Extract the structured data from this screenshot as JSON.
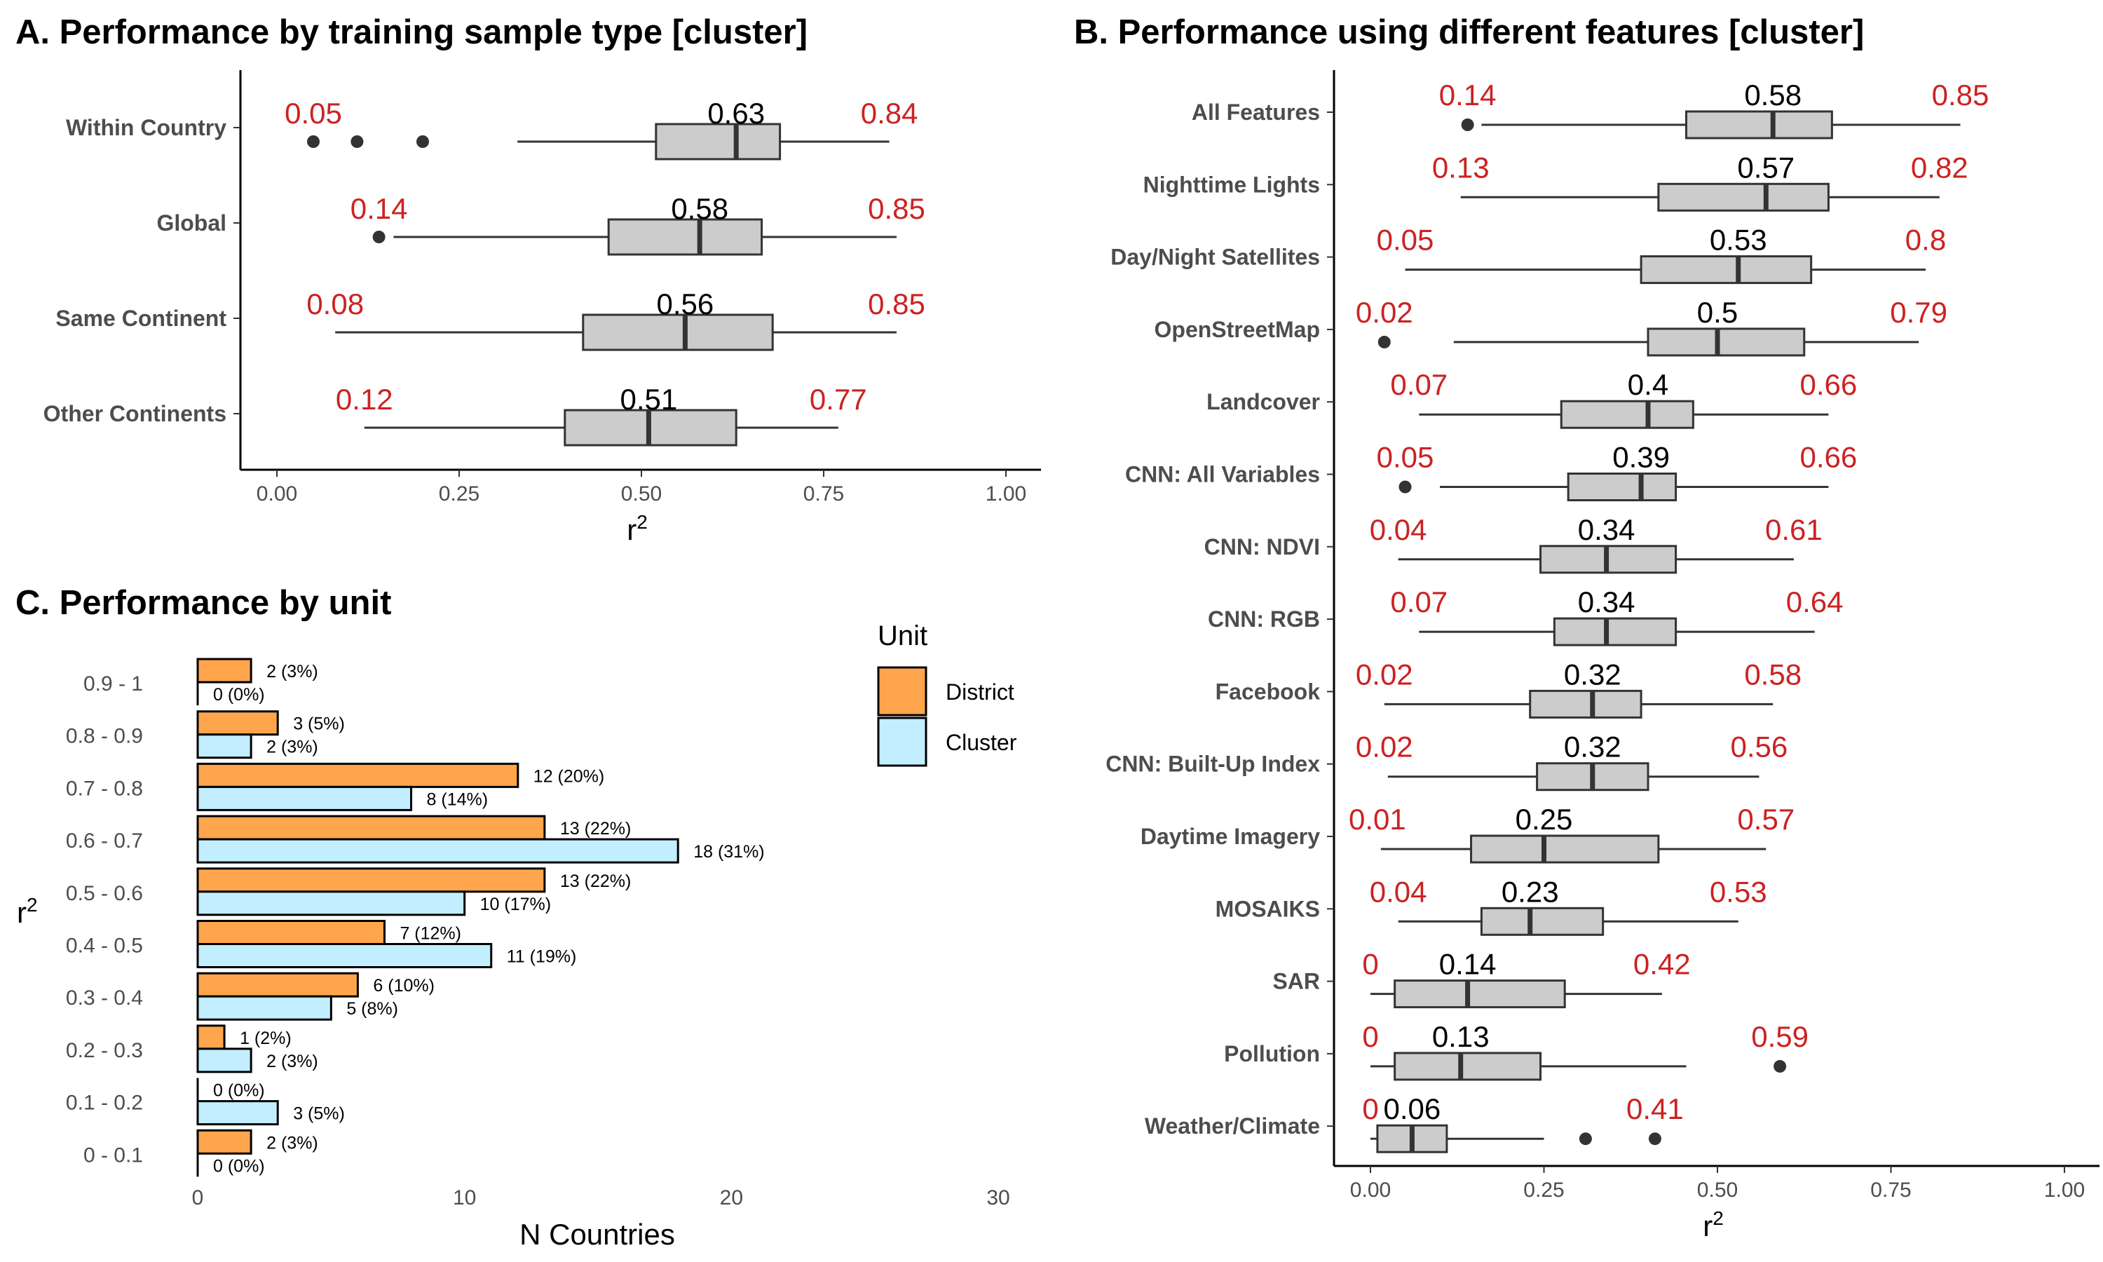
{
  "chart_data": [
    {
      "type": "box",
      "title": "A. Performance by training sample type [cluster]",
      "xlabel": "r",
      "xlabel_sup": "2",
      "xlim": [
        0,
        1
      ],
      "xticks": [
        "0.00",
        "0.25",
        "0.50",
        "0.75",
        "1.00"
      ],
      "xtick_values": [
        0,
        0.25,
        0.5,
        0.75,
        1
      ],
      "categories": [
        {
          "label": "Within Country",
          "min": 0.05,
          "max": 0.84,
          "median": 0.63,
          "min_label": "0.05",
          "max_label": "0.84",
          "median_label": "0.63",
          "whisker_low": 0.33,
          "q1": 0.52,
          "q3": 0.69,
          "outliers": [
            0.05,
            0.11,
            0.2
          ]
        },
        {
          "label": "Global",
          "min": 0.14,
          "max": 0.85,
          "median": 0.58,
          "min_label": "0.14",
          "max_label": "0.85",
          "median_label": "0.58",
          "whisker_low": 0.16,
          "q1": 0.455,
          "q3": 0.665,
          "outliers": [
            0.14
          ]
        },
        {
          "label": "Same Continent",
          "min": 0.08,
          "max": 0.85,
          "median": 0.56,
          "min_label": "0.08",
          "max_label": "0.85",
          "median_label": "0.56",
          "whisker_low": 0.08,
          "q1": 0.42,
          "q3": 0.68,
          "outliers": []
        },
        {
          "label": "Other Continents",
          "min": 0.12,
          "max": 0.77,
          "median": 0.51,
          "min_label": "0.12",
          "max_label": "0.77",
          "median_label": "0.51",
          "whisker_low": 0.12,
          "q1": 0.395,
          "q3": 0.63,
          "outliers": []
        }
      ]
    },
    {
      "type": "box",
      "title": "B. Performance using different features [cluster]",
      "xlabel": "r",
      "xlabel_sup": "2",
      "xlim": [
        0,
        1
      ],
      "xticks": [
        "0.00",
        "0.25",
        "0.50",
        "0.75",
        "1.00"
      ],
      "xtick_values": [
        0,
        0.25,
        0.5,
        0.75,
        1
      ],
      "categories": [
        {
          "label": "All Features",
          "min": 0.14,
          "max": 0.85,
          "median": 0.58,
          "min_label": "0.14",
          "max_label": "0.85",
          "median_label": "0.58",
          "whisker_low": 0.16,
          "q1": 0.455,
          "q3": 0.665,
          "outliers": [
            0.14
          ]
        },
        {
          "label": "Nighttime Lights",
          "min": 0.13,
          "max": 0.82,
          "median": 0.57,
          "min_label": "0.13",
          "max_label": "0.82",
          "median_label": "0.57",
          "whisker_low": 0.13,
          "q1": 0.415,
          "q3": 0.66,
          "outliers": []
        },
        {
          "label": "Day/Night Satellites",
          "min": 0.05,
          "max": 0.8,
          "median": 0.53,
          "min_label": "0.05",
          "max_label": "0.8",
          "median_label": "0.53",
          "whisker_low": 0.05,
          "q1": 0.39,
          "q3": 0.635,
          "outliers": []
        },
        {
          "label": "OpenStreetMap",
          "min": 0.02,
          "max": 0.79,
          "median": 0.5,
          "min_label": "0.02",
          "max_label": "0.79",
          "median_label": "0.5",
          "whisker_low": 0.12,
          "q1": 0.4,
          "q3": 0.625,
          "outliers": [
            0.02
          ]
        },
        {
          "label": "Landcover",
          "min": 0.07,
          "max": 0.66,
          "median": 0.4,
          "min_label": "0.07",
          "max_label": "0.66",
          "median_label": "0.4",
          "whisker_low": 0.07,
          "q1": 0.275,
          "q3": 0.465,
          "outliers": []
        },
        {
          "label": "CNN: All Variables",
          "min": 0.05,
          "max": 0.66,
          "median": 0.39,
          "min_label": "0.05",
          "max_label": "0.66",
          "median_label": "0.39",
          "whisker_low": 0.1,
          "q1": 0.285,
          "q3": 0.44,
          "outliers": [
            0.05
          ]
        },
        {
          "label": "CNN: NDVI",
          "min": 0.04,
          "max": 0.61,
          "median": 0.34,
          "min_label": "0.04",
          "max_label": "0.61",
          "median_label": "0.34",
          "whisker_low": 0.04,
          "q1": 0.245,
          "q3": 0.44,
          "outliers": []
        },
        {
          "label": "CNN: RGB",
          "min": 0.07,
          "max": 0.64,
          "median": 0.34,
          "min_label": "0.07",
          "max_label": "0.64",
          "median_label": "0.34",
          "whisker_low": 0.07,
          "q1": 0.265,
          "q3": 0.44,
          "outliers": []
        },
        {
          "label": "Facebook",
          "min": 0.02,
          "max": 0.58,
          "median": 0.32,
          "min_label": "0.02",
          "max_label": "0.58",
          "median_label": "0.32",
          "whisker_low": 0.02,
          "q1": 0.23,
          "q3": 0.39,
          "outliers": []
        },
        {
          "label": "CNN: Built-Up Index",
          "min": 0.02,
          "max": 0.56,
          "median": 0.32,
          "min_label": "0.02",
          "max_label": "0.56",
          "median_label": "0.32",
          "whisker_low": 0.025,
          "q1": 0.24,
          "q3": 0.4,
          "outliers": []
        },
        {
          "label": "Daytime Imagery",
          "min": 0.01,
          "max": 0.57,
          "median": 0.25,
          "min_label": "0.01",
          "max_label": "0.57",
          "median_label": "0.25",
          "whisker_low": 0.015,
          "q1": 0.145,
          "q3": 0.415,
          "outliers": []
        },
        {
          "label": "MOSAIKS",
          "min": 0.04,
          "max": 0.53,
          "median": 0.23,
          "min_label": "0.04",
          "max_label": "0.53",
          "median_label": "0.23",
          "whisker_low": 0.04,
          "q1": 0.16,
          "q3": 0.335,
          "outliers": []
        },
        {
          "label": "SAR",
          "min": 0,
          "max": 0.42,
          "median": 0.14,
          "min_label": "0",
          "max_label": "0.42",
          "median_label": "0.14",
          "whisker_low": 0.0,
          "q1": 0.035,
          "q3": 0.28,
          "outliers": []
        },
        {
          "label": "Pollution",
          "min": 0,
          "max": 0.59,
          "median": 0.13,
          "min_label": "0",
          "max_label": "0.59",
          "median_label": "0.13",
          "whisker_low": 0.0,
          "q1": 0.035,
          "q3": 0.245,
          "whisker_high": 0.455,
          "outliers": [
            0.59
          ]
        },
        {
          "label": "Weather/Climate",
          "min": 0,
          "max": 0.41,
          "median": 0.06,
          "min_label": "0",
          "max_label": "0.41",
          "median_label": "0.06",
          "whisker_low": 0.0,
          "q1": 0.01,
          "q3": 0.11,
          "whisker_high": 0.25,
          "outliers": [
            0.31,
            0.41
          ]
        }
      ]
    },
    {
      "type": "bar",
      "orientation": "horizontal",
      "title": "C. Performance by unit",
      "xlabel": "N Countries",
      "ylabel": "r",
      "ylabel_sup": "2",
      "xlim": [
        0,
        30
      ],
      "xticks": [
        "0",
        "10",
        "20",
        "30"
      ],
      "xtick_values": [
        0,
        10,
        20,
        30
      ],
      "legend_title": "Unit",
      "legend_placement": "right",
      "categories": [
        "0.9 - 1",
        "0.8 - 0.9",
        "0.7 - 0.8",
        "0.6 - 0.7",
        "0.5 - 0.6",
        "0.4 - 0.5",
        "0.3 - 0.4",
        "0.2 - 0.3",
        "0.1 - 0.2",
        "0 - 0.1"
      ],
      "series": [
        {
          "name": "District",
          "color": "#ffa64d",
          "values": [
            2,
            3,
            12,
            13,
            13,
            7,
            6,
            1,
            0,
            2
          ],
          "labels": [
            "2 (3%)",
            "3 (5%)",
            "12 (20%)",
            "13 (22%)",
            "13 (22%)",
            "7 (12%)",
            "6 (10%)",
            "1 (2%)",
            "0 (0%)",
            "2 (3%)"
          ]
        },
        {
          "name": "Cluster",
          "color": "#c2eeff",
          "values": [
            0,
            2,
            8,
            18,
            10,
            11,
            5,
            2,
            3,
            0
          ],
          "labels": [
            "0 (0%)",
            "2 (3%)",
            "8 (14%)",
            "18 (31%)",
            "10 (17%)",
            "11 (19%)",
            "5 (8%)",
            "2 (3%)",
            "3 (5%)",
            "0 (0%)"
          ]
        }
      ]
    }
  ],
  "colors": {
    "box_fill": "#cccccc",
    "box_stroke": "#333333",
    "extreme_text": "#cc2222",
    "district": "#ffa64d",
    "cluster": "#c2eeff"
  }
}
